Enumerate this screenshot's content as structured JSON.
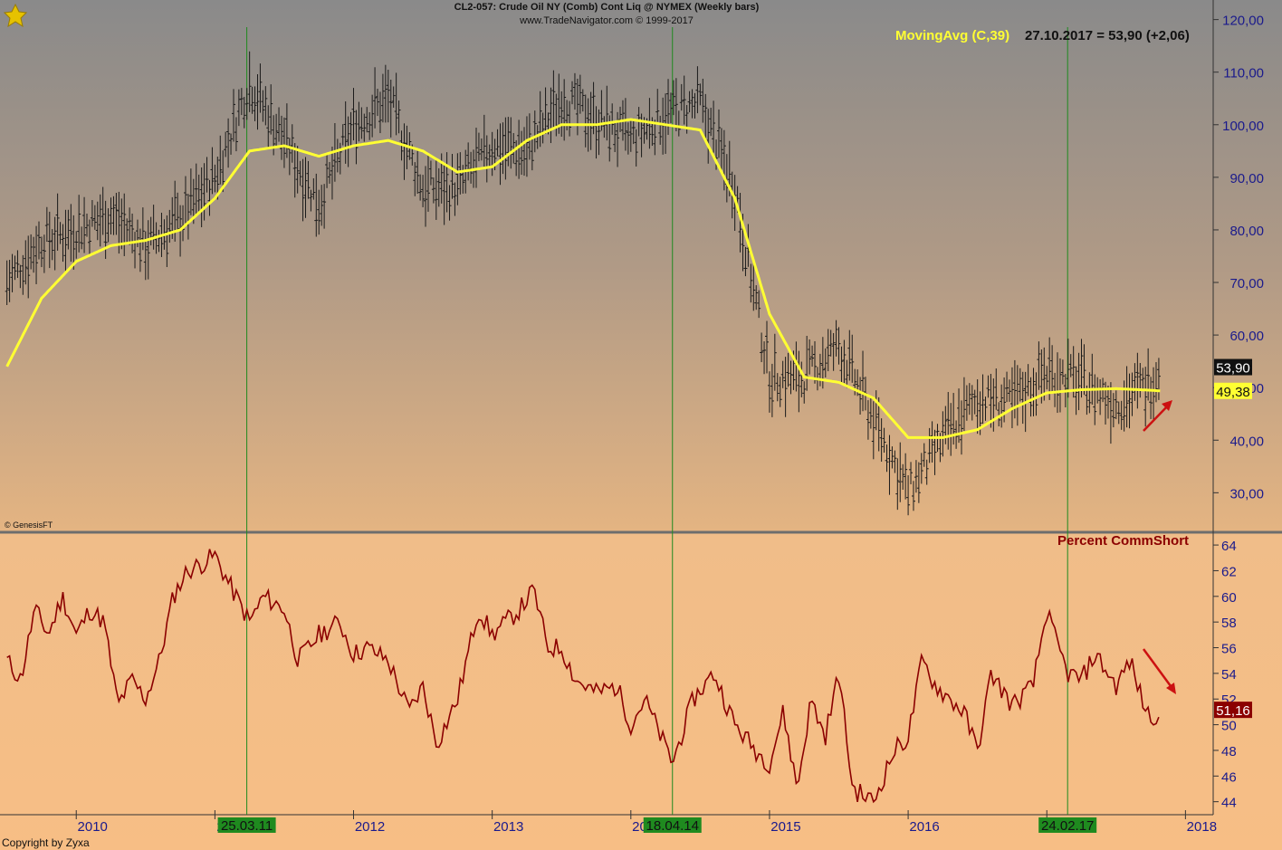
{
  "header": {
    "title": "CL2-057:  Crude Oil NY (Comb) Cont Liq @ NYMEX  (Weekly bars)",
    "subtitle": "www.TradeNavigator.com © 1999-2017"
  },
  "indicator_label": "MovingAvg (C,39)",
  "indicator_value": "27.10.2017 = 53,90 (+2,06)",
  "lower_panel_label": "Percent CommShort",
  "credit": "© GenesisFT",
  "copyright": "Copyright by Zyxa",
  "colors": {
    "price_bars": "#1a1a1a",
    "moving_average": "#ffff33",
    "comm_short": "#8b0000",
    "vertical_markers": "#1f8a1f",
    "arrows": "#cc1111",
    "axis_text_price": "#1a1a8c",
    "axis_text_lower": "#1a1a8c"
  },
  "chart_data": [
    {
      "type": "line",
      "subtype": "ohlc-bars with moving average",
      "title": "",
      "x_tick_labels": [
        "2010",
        "2011",
        "2012",
        "2013",
        "2014",
        "2015",
        "2016",
        "2017",
        "2018"
      ],
      "y_tick_labels": [
        "30,00",
        "40,00",
        "50,00",
        "60,00",
        "70,00",
        "80,00",
        "90,00",
        "100,00",
        "110,00",
        "120,00"
      ],
      "ylim": [
        23,
        122
      ],
      "xlim": [
        2009.45,
        2018.2
      ],
      "last_price_label": "53,90",
      "last_ma_label": "49,38",
      "series": [
        {
          "name": "",
          "style": "weekly bars",
          "x": [
            2009.5,
            2009.75,
            2010.0,
            2010.25,
            2010.5,
            2010.75,
            2011.0,
            2011.25,
            2011.5,
            2011.75,
            2012.0,
            2012.25,
            2012.5,
            2012.75,
            2013.0,
            2013.25,
            2013.5,
            2013.75,
            2014.0,
            2014.25,
            2014.5,
            2014.75,
            2015.0,
            2015.25,
            2015.5,
            2015.75,
            2016.0,
            2016.25,
            2016.5,
            2016.75,
            2017.0,
            2017.25,
            2017.5,
            2017.75,
            2017.82
          ],
          "y": [
            70,
            78,
            80,
            83,
            77,
            82,
            90,
            108,
            97,
            85,
            100,
            105,
            88,
            88,
            96,
            95,
            105,
            101,
            97,
            102,
            104,
            88,
            52,
            52,
            58,
            44,
            30,
            40,
            48,
            47,
            53,
            51,
            47,
            51,
            53.9
          ]
        },
        {
          "name": "MovingAvg (C,39)",
          "x": [
            2009.5,
            2009.75,
            2010.0,
            2010.25,
            2010.5,
            2010.75,
            2011.0,
            2011.25,
            2011.5,
            2011.75,
            2012.0,
            2012.25,
            2012.5,
            2012.75,
            2013.0,
            2013.25,
            2013.5,
            2013.75,
            2014.0,
            2014.25,
            2014.5,
            2014.75,
            2015.0,
            2015.25,
            2015.5,
            2015.75,
            2016.0,
            2016.25,
            2016.5,
            2016.75,
            2017.0,
            2017.25,
            2017.5,
            2017.75,
            2017.82
          ],
          "y": [
            54,
            67,
            74,
            77,
            78,
            80,
            86,
            95,
            96,
            94,
            96,
            97,
            95,
            91,
            92,
            97,
            100,
            100,
            101,
            100,
            99,
            86,
            64,
            52,
            51,
            48,
            40.5,
            40.5,
            42,
            46,
            49,
            49.6,
            49.8,
            49.5,
            49.38
          ]
        }
      ]
    },
    {
      "type": "line",
      "title": "Percent CommShort",
      "x_tick_labels": [
        "2010",
        "2011",
        "2012",
        "2013",
        "2014",
        "2015",
        "2016",
        "2017",
        "2018"
      ],
      "y_tick_labels": [
        "44",
        "46",
        "48",
        "50",
        "52",
        "54",
        "56",
        "58",
        "60",
        "62",
        "64"
      ],
      "ylim": [
        43.2,
        64.5
      ],
      "xlim": [
        2009.45,
        2018.2
      ],
      "last_value_label": "51,16",
      "series": [
        {
          "name": "Percent CommShort",
          "x": [
            2009.5,
            2009.6,
            2009.7,
            2009.8,
            2009.9,
            2010.0,
            2010.1,
            2010.2,
            2010.3,
            2010.4,
            2010.5,
            2010.6,
            2010.7,
            2010.8,
            2010.9,
            2011.0,
            2011.1,
            2011.2,
            2011.25,
            2011.35,
            2011.5,
            2011.6,
            2011.75,
            2011.9,
            2012.0,
            2012.1,
            2012.25,
            2012.4,
            2012.5,
            2012.6,
            2012.75,
            2012.9,
            2013.0,
            2013.1,
            2013.2,
            2013.3,
            2013.4,
            2013.5,
            2013.6,
            2013.75,
            2013.9,
            2014.0,
            2014.1,
            2014.2,
            2014.3,
            2014.45,
            2014.6,
            2014.75,
            2014.9,
            2015.0,
            2015.1,
            2015.2,
            2015.3,
            2015.4,
            2015.5,
            2015.6,
            2015.75,
            2015.9,
            2016.0,
            2016.1,
            2016.2,
            2016.3,
            2016.4,
            2016.5,
            2016.6,
            2016.75,
            2016.9,
            2017.0,
            2017.05,
            2017.15,
            2017.25,
            2017.35,
            2017.5,
            2017.6,
            2017.7,
            2017.75,
            2017.82
          ],
          "y": [
            55,
            53.5,
            59,
            57,
            60,
            57,
            59,
            58,
            51.5,
            53.5,
            52,
            55,
            60,
            62,
            62.5,
            63.2,
            61,
            59,
            58,
            60,
            59,
            55,
            57,
            58,
            55.5,
            56,
            55,
            51,
            53,
            48.5,
            52,
            59,
            57,
            58,
            59,
            60.5,
            56,
            56,
            53.5,
            52.5,
            53,
            50,
            52,
            49.5,
            47,
            52,
            54,
            50,
            48,
            47,
            51,
            45,
            52,
            49,
            54,
            45,
            44,
            48,
            49,
            55,
            53,
            52,
            51,
            48,
            54,
            51.5,
            53,
            58.9,
            57,
            54,
            53.5,
            55.5,
            53,
            55,
            51.5,
            50.5,
            51.16
          ]
        }
      ]
    }
  ],
  "vertical_markers": [
    {
      "date": "25.03.11",
      "x": 2011.23
    },
    {
      "date": "18.04.14",
      "x": 2014.3
    },
    {
      "date": "24.02.17",
      "x": 2017.15
    }
  ]
}
